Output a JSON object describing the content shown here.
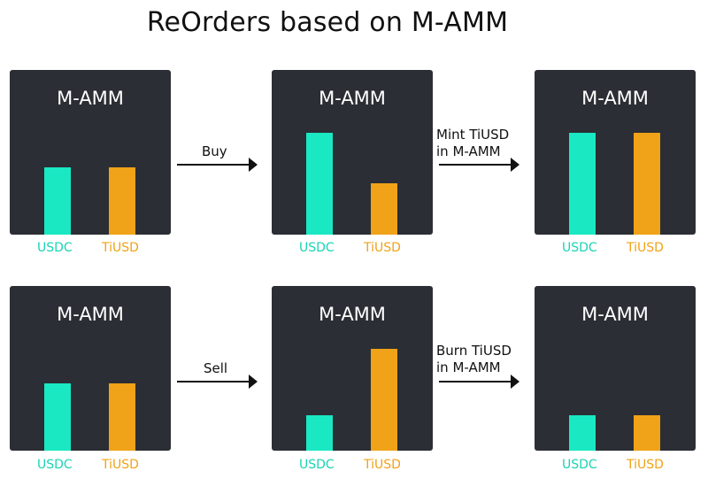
{
  "title": "ReOrders based on M-AMM",
  "legend": {
    "usdc": "USDC",
    "tiusd": "TiUSD"
  },
  "colors": {
    "usdc": "#19e8c3",
    "tiusd": "#f0a218",
    "card": "#2b2e34"
  },
  "rows": [
    {
      "arrows": [
        {
          "line1": "Buy",
          "line2": ""
        },
        {
          "line1": "Mint TiUSD",
          "line2": "in M-AMM"
        }
      ],
      "cards": [
        {
          "title": "M-AMM",
          "usdc_level": 0.51,
          "tiusd_level": 0.51
        },
        {
          "title": "M-AMM",
          "usdc_level": 0.77,
          "tiusd_level": 0.39
        },
        {
          "title": "M-AMM",
          "usdc_level": 0.77,
          "tiusd_level": 0.77
        }
      ]
    },
    {
      "arrows": [
        {
          "line1": "Sell",
          "line2": ""
        },
        {
          "line1": "Burn TiUSD",
          "line2": "in M-AMM"
        }
      ],
      "cards": [
        {
          "title": "M-AMM",
          "usdc_level": 0.51,
          "tiusd_level": 0.51
        },
        {
          "title": "M-AMM",
          "usdc_level": 0.27,
          "tiusd_level": 0.77
        },
        {
          "title": "M-AMM",
          "usdc_level": 0.27,
          "tiusd_level": 0.27
        }
      ]
    }
  ]
}
